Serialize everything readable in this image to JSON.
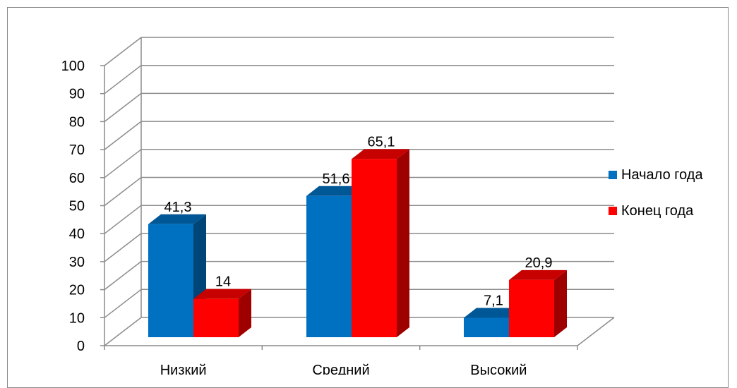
{
  "chart_data": {
    "type": "bar",
    "categories": [
      "Низкий",
      "Средний",
      "Высокий"
    ],
    "series": [
      {
        "name": "Начало года",
        "values": [
          41.3,
          51.6,
          7.1
        ],
        "labels": [
          "41,3",
          "51,6",
          "7,1"
        ],
        "color": "#0070C0"
      },
      {
        "name": "Конец года",
        "values": [
          14,
          65.1,
          20.9
        ],
        "labels": [
          "14",
          "65,1",
          "20,9"
        ],
        "color": "#FF0000"
      }
    ],
    "yticks": [
      "0",
      "10",
      "20",
      "30",
      "40",
      "50",
      "60",
      "70",
      "80",
      "90",
      "100"
    ],
    "ylim": [
      0,
      100
    ],
    "grid": true,
    "legend": "right",
    "style": "3d-clustered-column"
  }
}
